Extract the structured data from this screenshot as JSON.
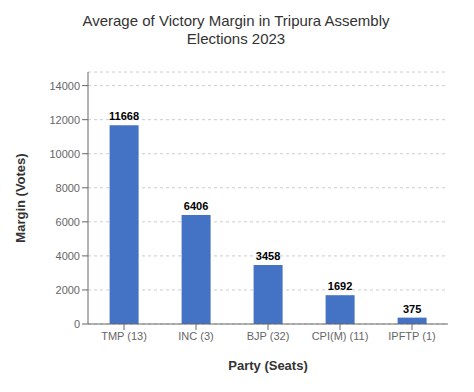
{
  "chart_data": {
    "type": "bar",
    "title": "Average of Victory Margin in Tripura Assembly\nElections 2023",
    "categories": [
      "TMP (13)",
      "INC (3)",
      "BJP (32)",
      "CPI(M) (11)",
      "IPFTP (1)"
    ],
    "values": [
      11668,
      6406,
      3458,
      1692,
      375
    ],
    "color": "#4472c4",
    "xlabel": "Party (Seats)",
    "ylabel": "Margin (Votes)",
    "ylim": [
      0,
      14800
    ],
    "yticks": [
      0,
      2000,
      4000,
      6000,
      8000,
      10000,
      12000,
      14000
    ],
    "grid": true,
    "data_labels": true
  }
}
